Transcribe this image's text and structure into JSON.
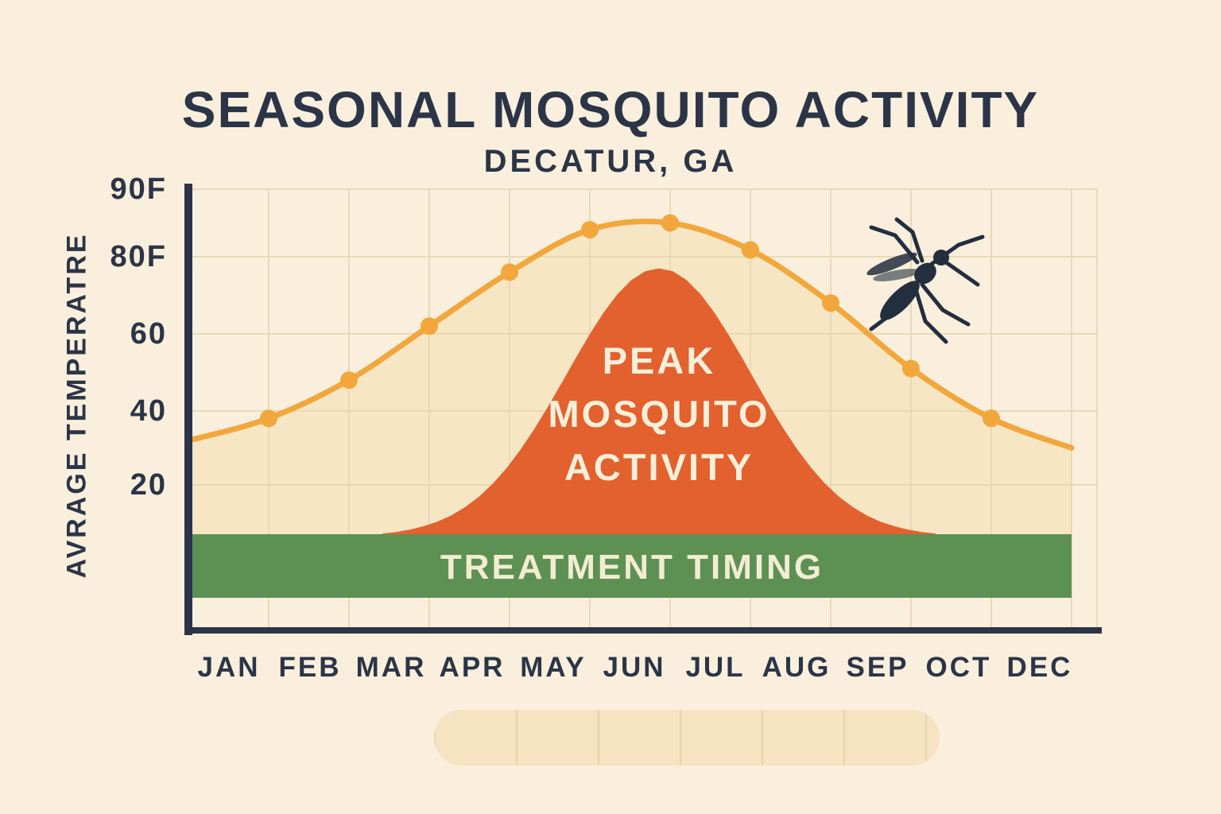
{
  "colors": {
    "background": "#f9efdc",
    "ink": "#2b3547",
    "line": "#f2a73c",
    "area_fill": "#f6e6c4",
    "peak_fill": "#e2612e",
    "band_fill": "#5d9154",
    "grid": "#e7d7b5",
    "label_cream": "#f7efda"
  },
  "annotations": {
    "mosquito_icon": "mosquito-icon",
    "decorative_bottom_bar": true
  },
  "chart_data": {
    "type": "area",
    "title": "SEASONAL MOSQUITO ACTIVITY",
    "subtitle": "DECATUR, GA",
    "ylabel": "AVRAGE TEMPERATRE",
    "xlabel": "",
    "ylim": [
      0,
      90
    ],
    "grid": true,
    "legend": false,
    "x_tick_labels": [
      "JAN",
      "FEB",
      "MAR",
      "APR",
      "MAY",
      "JUN",
      "JUL",
      "AUG",
      "SEP",
      "OCT",
      "DEC"
    ],
    "y_ticks": [
      {
        "label": "90F",
        "value": 90
      },
      {
        "label": "80F",
        "value": 80
      },
      {
        "label": "60",
        "value": 60
      },
      {
        "label": "40",
        "value": 40
      },
      {
        "label": "20",
        "value": 20
      }
    ],
    "series": [
      {
        "name": "average-temperature",
        "type": "line",
        "color": "#f2a73c",
        "points_months": [
          "JAN",
          "FEB",
          "MAR",
          "APR",
          "MAY",
          "JUN",
          "JUL",
          "AUG",
          "SEP",
          "OCT"
        ],
        "values_f": [
          38,
          48,
          62,
          76,
          84,
          85,
          81,
          68,
          51,
          38
        ],
        "edge_start_value_f": 32,
        "edge_end_value_f": 30,
        "area_under_fill": "#f6e6c4"
      },
      {
        "name": "peak-mosquito-activity",
        "type": "bell-area",
        "label_lines": [
          "PEAK",
          "MOSQUITO",
          "ACTIVITY"
        ],
        "color": "#e2612e",
        "peak_value_f": 77,
        "span_months": [
          "APR",
          "SEP"
        ]
      },
      {
        "name": "treatment-timing",
        "type": "band",
        "label": "TREATMENT TIMING",
        "color": "#5d9154"
      }
    ]
  }
}
